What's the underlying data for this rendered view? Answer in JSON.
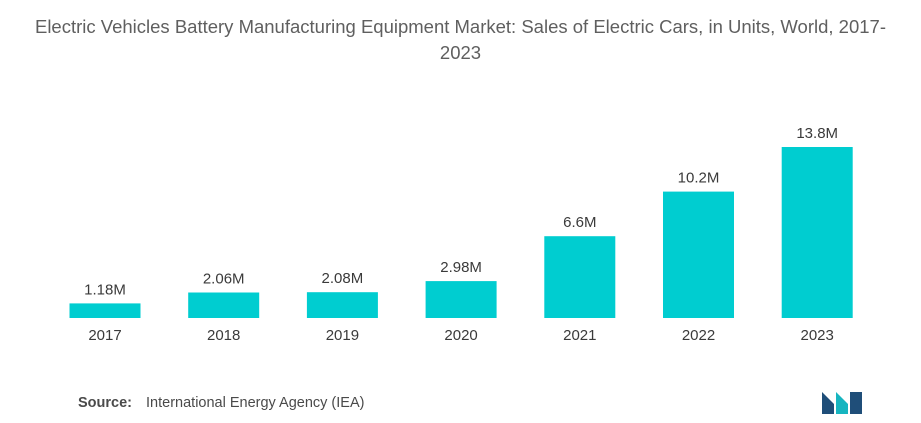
{
  "chart_data": {
    "type": "bar",
    "title": "Electric Vehicles Battery Manufacturing Equipment Market: Sales of Electric Cars, in Units, World, 2017-2023",
    "categories": [
      "2017",
      "2018",
      "2019",
      "2020",
      "2021",
      "2022",
      "2023"
    ],
    "values": [
      1.18,
      2.06,
      2.08,
      2.98,
      6.6,
      10.2,
      13.8
    ],
    "data_labels": [
      "1.18M",
      "2.06M",
      "2.08M",
      "2.98M",
      "6.6M",
      "10.2M",
      "13.8M"
    ],
    "xlabel": "",
    "ylabel": "",
    "ylim": [
      0,
      13.8
    ],
    "grid": false,
    "legend": "none",
    "bar_color": "#00cdd0"
  },
  "source": {
    "label": "Source:",
    "text": "International Energy Agency (IEA)"
  },
  "colors": {
    "logo_dark": "#1f4e79",
    "logo_teal": "#17b5c0"
  }
}
